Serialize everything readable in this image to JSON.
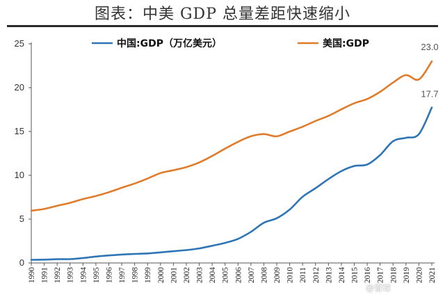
{
  "title": "图表：中美 GDP 总量差距快速缩小",
  "watermark": "@雪球",
  "chart_data": {
    "type": "line",
    "title": "",
    "xlabel": "",
    "ylabel": "",
    "x": [
      "1990",
      "1991",
      "1992",
      "1993",
      "1994",
      "1995",
      "1996",
      "1997",
      "1998",
      "1999",
      "2000",
      "2001",
      "2002",
      "2003",
      "2004",
      "2005",
      "2006",
      "2007",
      "2008",
      "2009",
      "2010",
      "2011",
      "2012",
      "2013",
      "2014",
      "2015",
      "2016",
      "2017",
      "2018",
      "2019",
      "2020",
      "2021"
    ],
    "ylim": [
      0,
      25
    ],
    "yticks": [
      0,
      5,
      10,
      15,
      20,
      25
    ],
    "grid": false,
    "legend": "top",
    "series": [
      {
        "name": "中国:GDP（万亿美元）",
        "color": "#2e75b6",
        "values": [
          0.36,
          0.38,
          0.43,
          0.44,
          0.56,
          0.73,
          0.86,
          0.96,
          1.03,
          1.09,
          1.21,
          1.34,
          1.47,
          1.66,
          1.96,
          2.29,
          2.75,
          3.55,
          4.59,
          5.1,
          6.09,
          7.55,
          8.53,
          9.57,
          10.48,
          11.06,
          11.23,
          12.31,
          13.89,
          14.28,
          14.69,
          17.73
        ]
      },
      {
        "name": "美国:GDP",
        "color": "#e07b2a",
        "values": [
          5.96,
          6.16,
          6.52,
          6.86,
          7.29,
          7.64,
          8.07,
          8.58,
          9.06,
          9.63,
          10.25,
          10.58,
          10.94,
          11.46,
          12.21,
          13.04,
          13.82,
          14.45,
          14.71,
          14.45,
          14.99,
          15.54,
          16.2,
          16.78,
          17.52,
          18.22,
          18.71,
          19.52,
          20.58,
          21.43,
          20.94,
          23.0
        ]
      }
    ],
    "annotations": [
      {
        "series": 1,
        "x": "2021",
        "text": "23.0"
      },
      {
        "series": 0,
        "x": "2021",
        "text": "17.7"
      }
    ]
  }
}
